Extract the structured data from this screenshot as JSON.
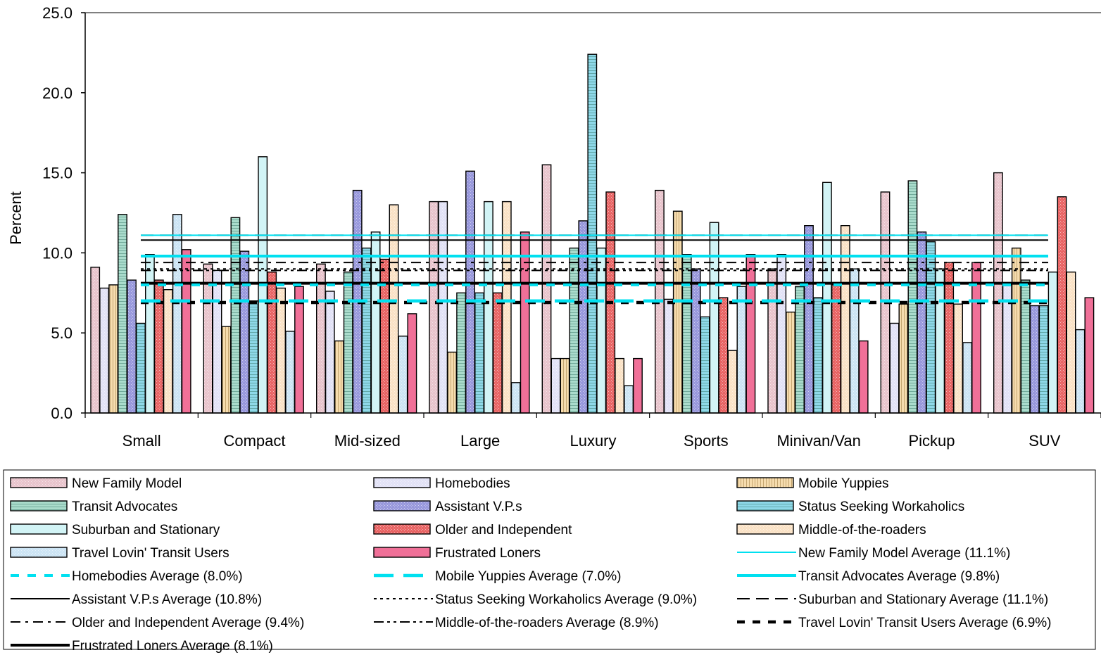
{
  "chart_data": {
    "type": "bar",
    "title": "",
    "xlabel": "",
    "ylabel": "Percent",
    "ylim": [
      0,
      25
    ],
    "yticks": [
      "0.0",
      "5.0",
      "10.0",
      "15.0",
      "20.0",
      "25.0"
    ],
    "grid": false,
    "legend_position": "bottom",
    "categories": [
      "Small",
      "Compact",
      "Mid-sized",
      "Large",
      "Luxury",
      "Sports",
      "Minivan/Van",
      "Pickup",
      "SUV"
    ],
    "series": [
      {
        "name": "New Family Model",
        "color": "#e8c4cc",
        "pattern": "dots",
        "values": [
          9.1,
          9.3,
          9.3,
          13.2,
          15.5,
          13.9,
          9.0,
          13.8,
          15.0
        ]
      },
      {
        "name": "Homebodies",
        "color": "#e2e2f6",
        "pattern": "dots",
        "values": [
          7.8,
          8.9,
          7.6,
          13.2,
          3.4,
          7.1,
          9.9,
          5.6,
          8.0
        ]
      },
      {
        "name": "Mobile Yuppies",
        "color": "#f6dcae",
        "pattern": "vlines",
        "values": [
          8.0,
          5.4,
          4.5,
          3.8,
          3.4,
          12.6,
          6.3,
          6.8,
          10.3
        ]
      },
      {
        "name": "Transit Advocates",
        "color": "#aadccc",
        "pattern": "hlines",
        "values": [
          12.4,
          12.2,
          8.8,
          7.5,
          10.3,
          9.9,
          7.9,
          14.5,
          8.3
        ]
      },
      {
        "name": "Assistant V.P.s",
        "color": "#9898dc",
        "pattern": "dots",
        "values": [
          8.3,
          10.1,
          13.9,
          15.1,
          12.0,
          9.0,
          11.7,
          11.3,
          6.7
        ]
      },
      {
        "name": "Status Seeking Workaholics",
        "color": "#8ed8e8",
        "pattern": "hlines",
        "values": [
          5.6,
          7.0,
          10.3,
          7.5,
          22.4,
          6.0,
          7.2,
          10.7,
          6.7
        ]
      },
      {
        "name": "Suburban and Stationary",
        "color": "#d2f4f6",
        "pattern": "none",
        "values": [
          9.9,
          16.0,
          11.3,
          13.2,
          10.3,
          11.9,
          14.4,
          9.0,
          8.8
        ]
      },
      {
        "name": "Older and Independent",
        "color": "#e86464",
        "pattern": "dots",
        "values": [
          8.3,
          8.8,
          9.6,
          7.5,
          13.8,
          7.2,
          8.0,
          9.4,
          13.5
        ]
      },
      {
        "name": "Middle-of-the-roaders",
        "color": "#fae2c6",
        "pattern": "dots",
        "values": [
          7.7,
          7.8,
          13.0,
          13.2,
          3.4,
          3.9,
          11.7,
          6.8,
          8.8
        ]
      },
      {
        "name": "Travel Lovin' Transit Users",
        "color": "#cce4f4",
        "pattern": "dots",
        "values": [
          12.4,
          5.1,
          4.8,
          1.9,
          1.7,
          7.9,
          9.0,
          4.4,
          5.2
        ]
      },
      {
        "name": "Frustrated Loners",
        "color": "#f07098",
        "pattern": "none",
        "values": [
          10.2,
          7.9,
          6.2,
          11.3,
          3.4,
          9.9,
          4.5,
          9.4,
          7.2
        ]
      }
    ],
    "averages": [
      {
        "name": "New Family Model Average (11.1%)",
        "value": 11.1,
        "color": "#00e0f0",
        "width": 2,
        "dash": "none"
      },
      {
        "name": "Homebodies Average (8.0%)",
        "value": 8.0,
        "color": "#00e0f0",
        "width": 4,
        "dash": "12,12"
      },
      {
        "name": "Mobile Yuppies Average (7.0%)",
        "value": 7.0,
        "color": "#00e0f0",
        "width": 4.5,
        "dash": "28,14"
      },
      {
        "name": "Transit Advocates Average (9.8%)",
        "value": 9.8,
        "color": "#00e0f0",
        "width": 4,
        "dash": "none"
      },
      {
        "name": "Assistant V.P.s Average (10.8%)",
        "value": 10.8,
        "color": "#000000",
        "width": 2,
        "dash": "none"
      },
      {
        "name": "Status Seeking Workaholics Average (9.0%)",
        "value": 9.0,
        "color": "#000000",
        "width": 2,
        "dash": "4,5"
      },
      {
        "name": "Suburban and Stationary Average (11.1%)",
        "value": 11.1,
        "color": "#000000",
        "width": 2,
        "dash": "18,9"
      },
      {
        "name": "Older and Independent Average (9.4%)",
        "value": 9.4,
        "color": "#000000",
        "width": 2,
        "dash": "14,7,4,7"
      },
      {
        "name": "Middle-of-the-roaders Average (8.9%)",
        "value": 8.9,
        "color": "#000000",
        "width": 2,
        "dash": "14,5,4,5,4,5"
      },
      {
        "name": "Travel Lovin' Transit Users Average (6.9%)",
        "value": 6.9,
        "color": "#000000",
        "width": 4.5,
        "dash": "11,11"
      },
      {
        "name": "Frustrated Loners Average (8.1%)",
        "value": 8.1,
        "color": "#000000",
        "width": 4,
        "dash": "none"
      }
    ]
  }
}
